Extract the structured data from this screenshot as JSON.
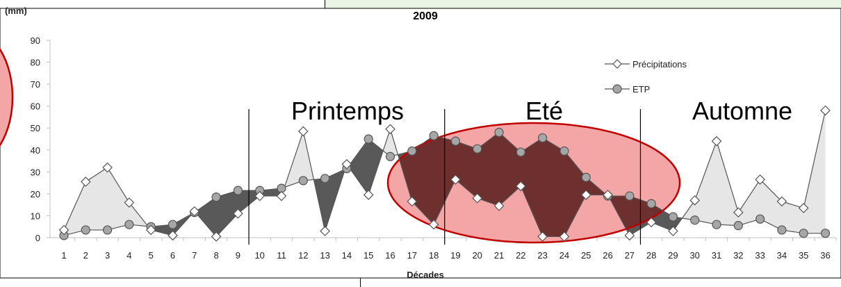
{
  "chart_data": {
    "type": "line",
    "title": "2009",
    "ylabel": "(mm)",
    "xlabel": "Décades",
    "ylim": [
      0,
      90
    ],
    "yticks": [
      0,
      10,
      20,
      30,
      40,
      50,
      60,
      70,
      80,
      90
    ],
    "grid": false,
    "legend_position": "top-right",
    "categories": [
      "1",
      "2",
      "3",
      "4",
      "5",
      "6",
      "7",
      "8",
      "9",
      "10",
      "11",
      "12",
      "13",
      "14",
      "15",
      "16",
      "17",
      "18",
      "19",
      "20",
      "21",
      "22",
      "23",
      "24",
      "25",
      "26",
      "27",
      "28",
      "29",
      "30",
      "31",
      "32",
      "33",
      "34",
      "35",
      "36"
    ],
    "series": [
      {
        "name": "Précipitations",
        "marker": "diamond-open",
        "values": [
          3.5,
          25.5,
          32,
          16,
          3.5,
          1,
          12,
          0.5,
          11,
          19,
          19,
          48.5,
          3,
          33.5,
          19.5,
          49.5,
          16.5,
          6,
          26.5,
          18,
          14.5,
          23.5,
          0.5,
          0.5,
          19.5,
          19.5,
          1,
          7,
          3,
          17,
          44,
          11.5,
          26.5,
          16.5,
          13.5,
          58
        ]
      },
      {
        "name": "ETP",
        "marker": "circle-filled",
        "values": [
          1,
          3.5,
          3.5,
          6,
          5,
          6,
          11.5,
          18.5,
          21.5,
          21.5,
          22.5,
          26,
          27,
          31.5,
          45,
          37,
          39.5,
          46.5,
          44,
          40.5,
          48,
          39,
          45.5,
          39.5,
          27.5,
          19,
          19,
          15.5,
          9.5,
          8,
          6,
          5.5,
          8.5,
          3.5,
          2,
          2
        ]
      }
    ],
    "annotations": [
      "Printemps",
      "Eté",
      "Automne"
    ],
    "colors": {
      "surplus_fill": "#e6e6e6",
      "deficit_fill": "#595959",
      "summer_deficit_fill": "#6e2f2f",
      "highlight_ellipse_fill": "#f4a5a5",
      "highlight_ellipse_stroke": "#c00000",
      "background_panel": "#ebf5e6"
    }
  }
}
